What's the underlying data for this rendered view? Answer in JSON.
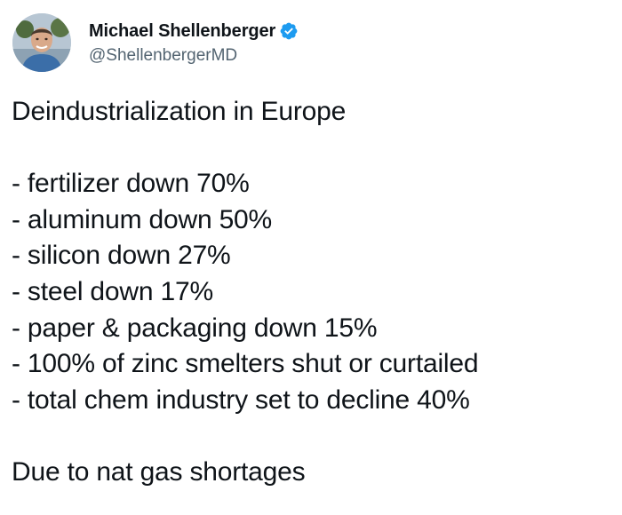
{
  "author": {
    "display_name": "Michael Shellenberger",
    "handle": "@ShellenbergerMD",
    "verified": true,
    "verified_color": "#1d9bf0",
    "avatar_icon": "profile-photo"
  },
  "tweet": {
    "title_line": "Deindustrialization in Europe",
    "items": [
      "- fertilizer down 70%",
      "- aluminum down 50%",
      "- silicon down 27%",
      "- steel down 17%",
      "- paper & packaging down 15%",
      "- 100% of zinc smelters shut or curtailed",
      "- total chem industry set to decline 40%"
    ],
    "closing_line": "Due to nat gas shortages"
  }
}
